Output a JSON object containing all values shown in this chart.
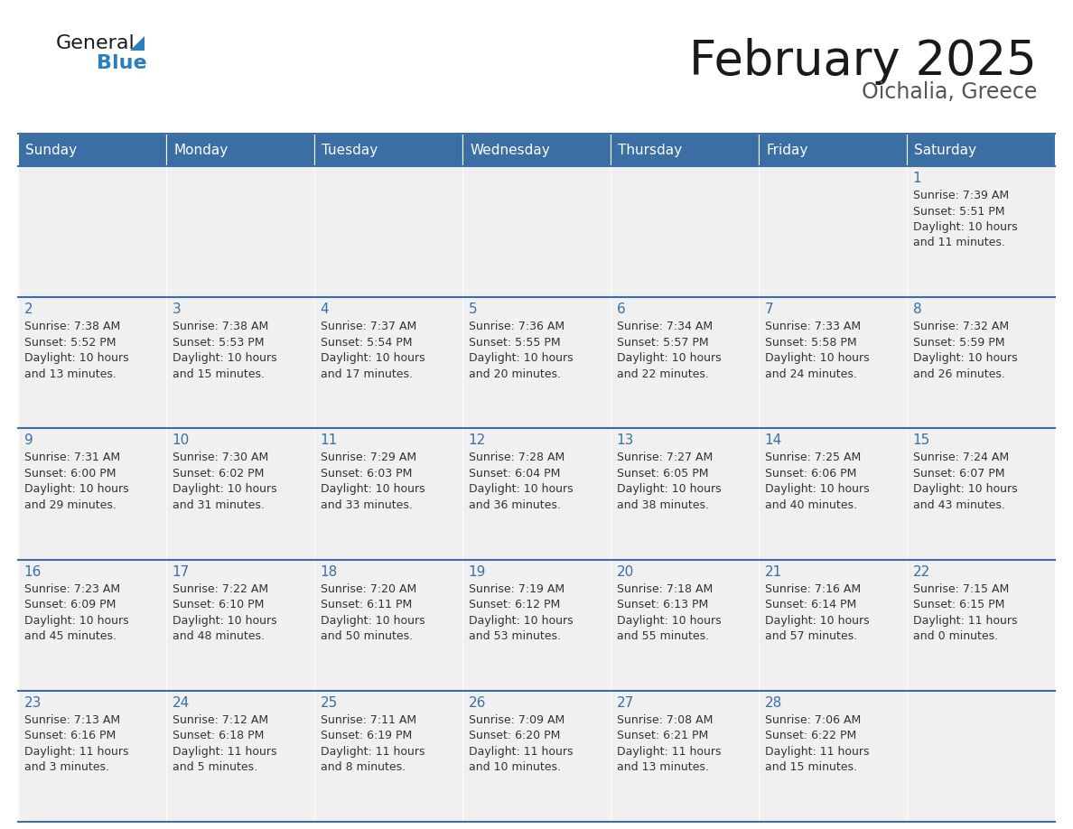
{
  "title": "February 2025",
  "subtitle": "Oichalia, Greece",
  "days_of_week": [
    "Sunday",
    "Monday",
    "Tuesday",
    "Wednesday",
    "Thursday",
    "Friday",
    "Saturday"
  ],
  "header_bg": "#3a6ea5",
  "header_text": "#ffffff",
  "cell_bg": "#f0f0f0",
  "border_color": "#3a6ea5",
  "day_num_color": "#3a6ea5",
  "text_color": "#333333",
  "calendar_data": [
    [
      null,
      null,
      null,
      null,
      null,
      null,
      {
        "day": 1,
        "sunrise": "7:39 AM",
        "sunset": "5:51 PM",
        "daylight": "10 hours and 11 minutes."
      }
    ],
    [
      {
        "day": 2,
        "sunrise": "7:38 AM",
        "sunset": "5:52 PM",
        "daylight": "10 hours and 13 minutes."
      },
      {
        "day": 3,
        "sunrise": "7:38 AM",
        "sunset": "5:53 PM",
        "daylight": "10 hours and 15 minutes."
      },
      {
        "day": 4,
        "sunrise": "7:37 AM",
        "sunset": "5:54 PM",
        "daylight": "10 hours and 17 minutes."
      },
      {
        "day": 5,
        "sunrise": "7:36 AM",
        "sunset": "5:55 PM",
        "daylight": "10 hours and 20 minutes."
      },
      {
        "day": 6,
        "sunrise": "7:34 AM",
        "sunset": "5:57 PM",
        "daylight": "10 hours and 22 minutes."
      },
      {
        "day": 7,
        "sunrise": "7:33 AM",
        "sunset": "5:58 PM",
        "daylight": "10 hours and 24 minutes."
      },
      {
        "day": 8,
        "sunrise": "7:32 AM",
        "sunset": "5:59 PM",
        "daylight": "10 hours and 26 minutes."
      }
    ],
    [
      {
        "day": 9,
        "sunrise": "7:31 AM",
        "sunset": "6:00 PM",
        "daylight": "10 hours and 29 minutes."
      },
      {
        "day": 10,
        "sunrise": "7:30 AM",
        "sunset": "6:02 PM",
        "daylight": "10 hours and 31 minutes."
      },
      {
        "day": 11,
        "sunrise": "7:29 AM",
        "sunset": "6:03 PM",
        "daylight": "10 hours and 33 minutes."
      },
      {
        "day": 12,
        "sunrise": "7:28 AM",
        "sunset": "6:04 PM",
        "daylight": "10 hours and 36 minutes."
      },
      {
        "day": 13,
        "sunrise": "7:27 AM",
        "sunset": "6:05 PM",
        "daylight": "10 hours and 38 minutes."
      },
      {
        "day": 14,
        "sunrise": "7:25 AM",
        "sunset": "6:06 PM",
        "daylight": "10 hours and 40 minutes."
      },
      {
        "day": 15,
        "sunrise": "7:24 AM",
        "sunset": "6:07 PM",
        "daylight": "10 hours and 43 minutes."
      }
    ],
    [
      {
        "day": 16,
        "sunrise": "7:23 AM",
        "sunset": "6:09 PM",
        "daylight": "10 hours and 45 minutes."
      },
      {
        "day": 17,
        "sunrise": "7:22 AM",
        "sunset": "6:10 PM",
        "daylight": "10 hours and 48 minutes."
      },
      {
        "day": 18,
        "sunrise": "7:20 AM",
        "sunset": "6:11 PM",
        "daylight": "10 hours and 50 minutes."
      },
      {
        "day": 19,
        "sunrise": "7:19 AM",
        "sunset": "6:12 PM",
        "daylight": "10 hours and 53 minutes."
      },
      {
        "day": 20,
        "sunrise": "7:18 AM",
        "sunset": "6:13 PM",
        "daylight": "10 hours and 55 minutes."
      },
      {
        "day": 21,
        "sunrise": "7:16 AM",
        "sunset": "6:14 PM",
        "daylight": "10 hours and 57 minutes."
      },
      {
        "day": 22,
        "sunrise": "7:15 AM",
        "sunset": "6:15 PM",
        "daylight": "11 hours and 0 minutes."
      }
    ],
    [
      {
        "day": 23,
        "sunrise": "7:13 AM",
        "sunset": "6:16 PM",
        "daylight": "11 hours and 3 minutes."
      },
      {
        "day": 24,
        "sunrise": "7:12 AM",
        "sunset": "6:18 PM",
        "daylight": "11 hours and 5 minutes."
      },
      {
        "day": 25,
        "sunrise": "7:11 AM",
        "sunset": "6:19 PM",
        "daylight": "11 hours and 8 minutes."
      },
      {
        "day": 26,
        "sunrise": "7:09 AM",
        "sunset": "6:20 PM",
        "daylight": "11 hours and 10 minutes."
      },
      {
        "day": 27,
        "sunrise": "7:08 AM",
        "sunset": "6:21 PM",
        "daylight": "11 hours and 13 minutes."
      },
      {
        "day": 28,
        "sunrise": "7:06 AM",
        "sunset": "6:22 PM",
        "daylight": "11 hours and 15 minutes."
      },
      null
    ]
  ]
}
